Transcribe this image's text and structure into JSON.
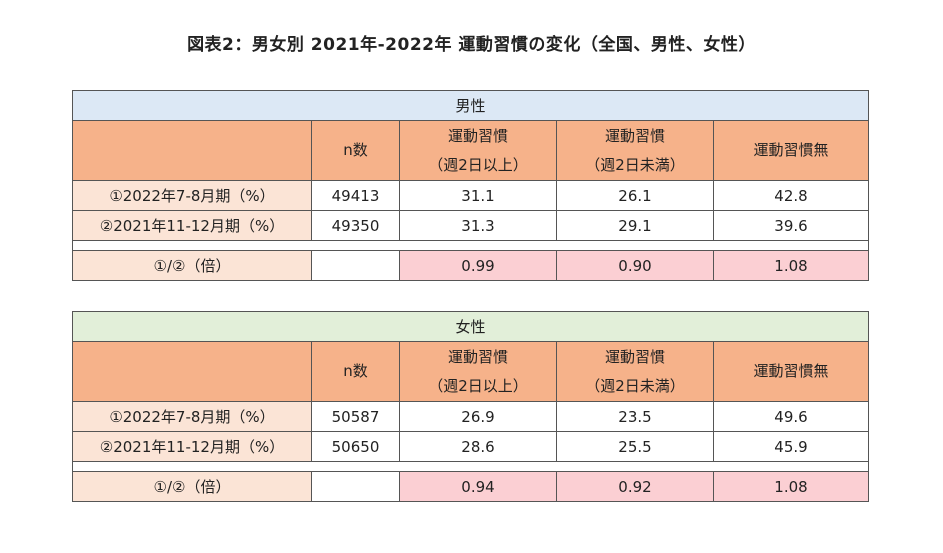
{
  "title": "図表2：男女別 2021年-2022年 運動習慣の変化（全国、男性、女性）",
  "headers": {
    "n": "n数",
    "habit2_line1": "運動習慣",
    "habit2_line2": "（週2日以上）",
    "habitUnder_line1": "運動習慣",
    "habitUnder_line2": "（週2日未満）",
    "none": "運動習慣無"
  },
  "male": {
    "section": "男性",
    "rows": [
      {
        "label": "①2022年7-8月期（%）",
        "n": "49413",
        "habit2": "31.1",
        "habitUnder": "26.1",
        "none": "42.8"
      },
      {
        "label": "②2021年11-12月期（%）",
        "n": "49350",
        "habit2": "31.3",
        "habitUnder": "29.1",
        "none": "39.6"
      }
    ],
    "ratio": {
      "label": "①/②（倍）",
      "habit2": "0.99",
      "habitUnder": "0.90",
      "none": "1.08"
    }
  },
  "female": {
    "section": "女性",
    "rows": [
      {
        "label": "①2022年7-8月期（%）",
        "n": "50587",
        "habit2": "26.9",
        "habitUnder": "23.5",
        "none": "49.6"
      },
      {
        "label": "②2021年11-12月期（%）",
        "n": "50650",
        "habit2": "28.6",
        "habitUnder": "25.5",
        "none": "45.9"
      }
    ],
    "ratio": {
      "label": "①/②（倍）",
      "habit2": "0.94",
      "habitUnder": "0.92",
      "none": "1.08"
    }
  },
  "colors": {
    "male_section_bg": "#dce8f5",
    "female_section_bg": "#e2efd9",
    "header_bg": "#f6b28a",
    "row_label_bg": "#fbe4d6",
    "ratio_value_bg": "#fbcfd3",
    "border": "#555555"
  }
}
